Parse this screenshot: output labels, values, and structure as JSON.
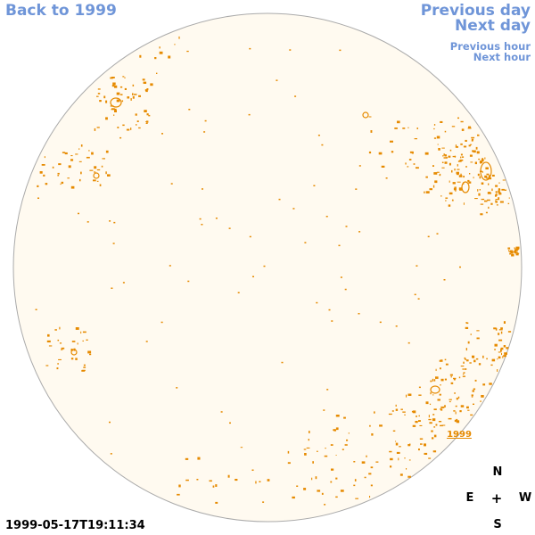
{
  "nav": {
    "back": "Back to 1999",
    "previous_day": "Previous day",
    "next_day": "Next day",
    "previous_hour": "Previous hour",
    "next_hour": "Next hour"
  },
  "disk": {
    "year_tag": "1999",
    "fill_color": "#fffaf0",
    "edge_color": "#aaaaaa",
    "mark_color": "#e68a00"
  },
  "compass": {
    "n": "N",
    "e": "E",
    "center": "+",
    "w": "W",
    "s": "S"
  },
  "timestamp": "1999-05-17T19:11:34"
}
